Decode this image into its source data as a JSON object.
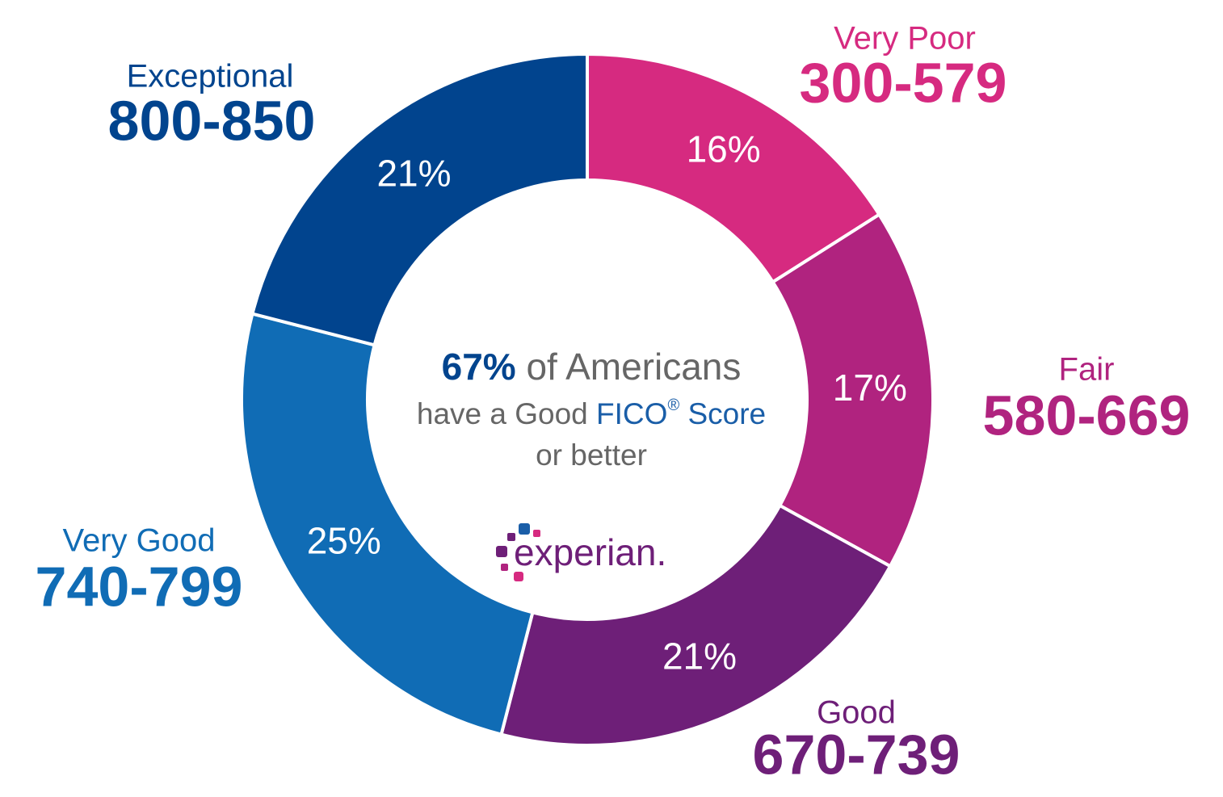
{
  "chart_data": {
    "type": "donut",
    "categories": [
      "Very Poor",
      "Fair",
      "Good",
      "Very Good",
      "Exceptional"
    ],
    "ranges": [
      "300-579",
      "580-669",
      "670-739",
      "740-799",
      "800-850"
    ],
    "values": [
      16,
      17,
      21,
      25,
      21
    ],
    "value_labels": [
      "16%",
      "17%",
      "21%",
      "25%",
      "21%"
    ],
    "colors": [
      "#d62a80",
      "#b0237f",
      "#6e1f78",
      "#106cb5",
      "#01448e"
    ],
    "center_text": {
      "highlight": "67%",
      "line1": "of Americans",
      "line2_start": "have a Good",
      "brand": "FICO",
      "registered": "®",
      "line2_end": "Score",
      "line3": "or better"
    },
    "logo": "experian."
  }
}
